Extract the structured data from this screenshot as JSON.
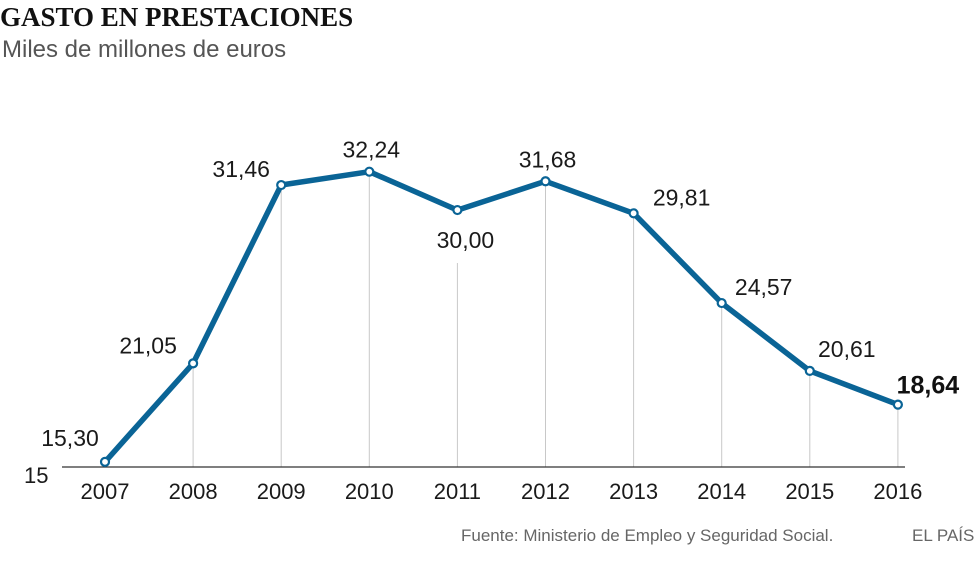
{
  "header": {
    "title": "GASTO EN PRESTACIONES",
    "subtitle": "Miles de millones de euros"
  },
  "footer": {
    "source": "Fuente: Ministerio de Empleo y Seguridad Social.",
    "brand": "EL PAÍS"
  },
  "colors": {
    "line": "#0a6496",
    "point_fill": "#ffffff",
    "grid": "#c8c8c8",
    "axis": "#333333",
    "text": "#1a1a1a"
  },
  "chart_data": {
    "type": "line",
    "title": "GASTO EN PRESTACIONES",
    "subtitle": "Miles de millones de euros",
    "x": [
      "2007",
      "2008",
      "2009",
      "2010",
      "2011",
      "2012",
      "2013",
      "2014",
      "2015",
      "2016"
    ],
    "series": [
      {
        "values": [
          15.3,
          21.05,
          31.46,
          32.24,
          30.0,
          31.68,
          29.81,
          24.57,
          20.61,
          18.64
        ],
        "labels": [
          "15,30",
          "21,05",
          "31,46",
          "32,24",
          "30,00",
          "31,68",
          "29,81",
          "24,57",
          "20,61",
          "18,64"
        ]
      }
    ],
    "highlight_last": true,
    "y_axis_tick_labels": [
      "15"
    ],
    "ylim": [
      15,
      33
    ],
    "grid": "vertical drop lines"
  }
}
